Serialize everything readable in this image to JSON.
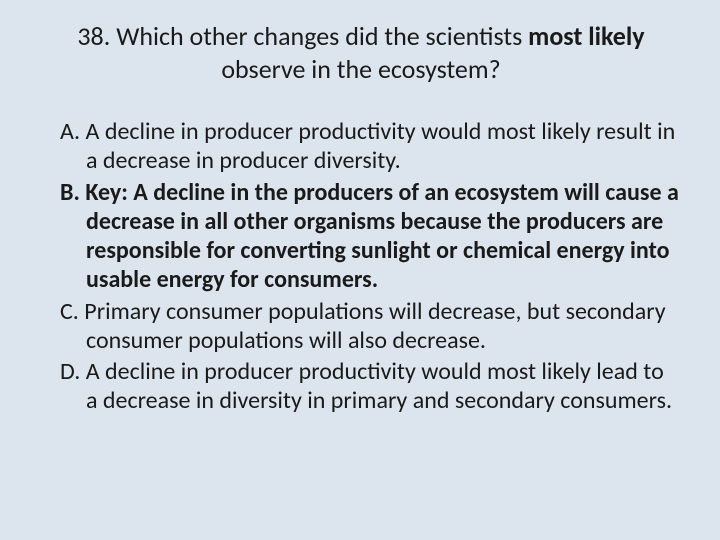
{
  "question": {
    "number": "38.",
    "text_prefix": "Which other changes did the scientists ",
    "text_bold": "most likely",
    "text_suffix": " observe in the ecosystem?"
  },
  "answers": {
    "a": {
      "letter": "A.",
      "text": "A decline in producer productivity would most likely result in a decrease in producer diversity.",
      "is_key": false
    },
    "b": {
      "letter": "B.",
      "text": "Key: A decline in the producers of an ecosystem will cause a decrease in all other organisms because the producers are responsible for converting sunlight or chemical energy into usable energy for consumers.",
      "is_key": true
    },
    "c": {
      "letter": "C.",
      "text": "Primary consumer populations will decrease, but secondary consumer populations will also decrease.",
      "is_key": false
    },
    "d": {
      "letter": "D.",
      "text": "A decline in producer productivity would most likely lead to a decrease in diversity in primary and secondary consumers.",
      "is_key": false
    }
  },
  "colors": {
    "background": "#dce4ee",
    "text": "#1a1a1a"
  },
  "typography": {
    "title_fontsize": 26,
    "body_fontsize": 24,
    "font_family": "Calibri"
  }
}
